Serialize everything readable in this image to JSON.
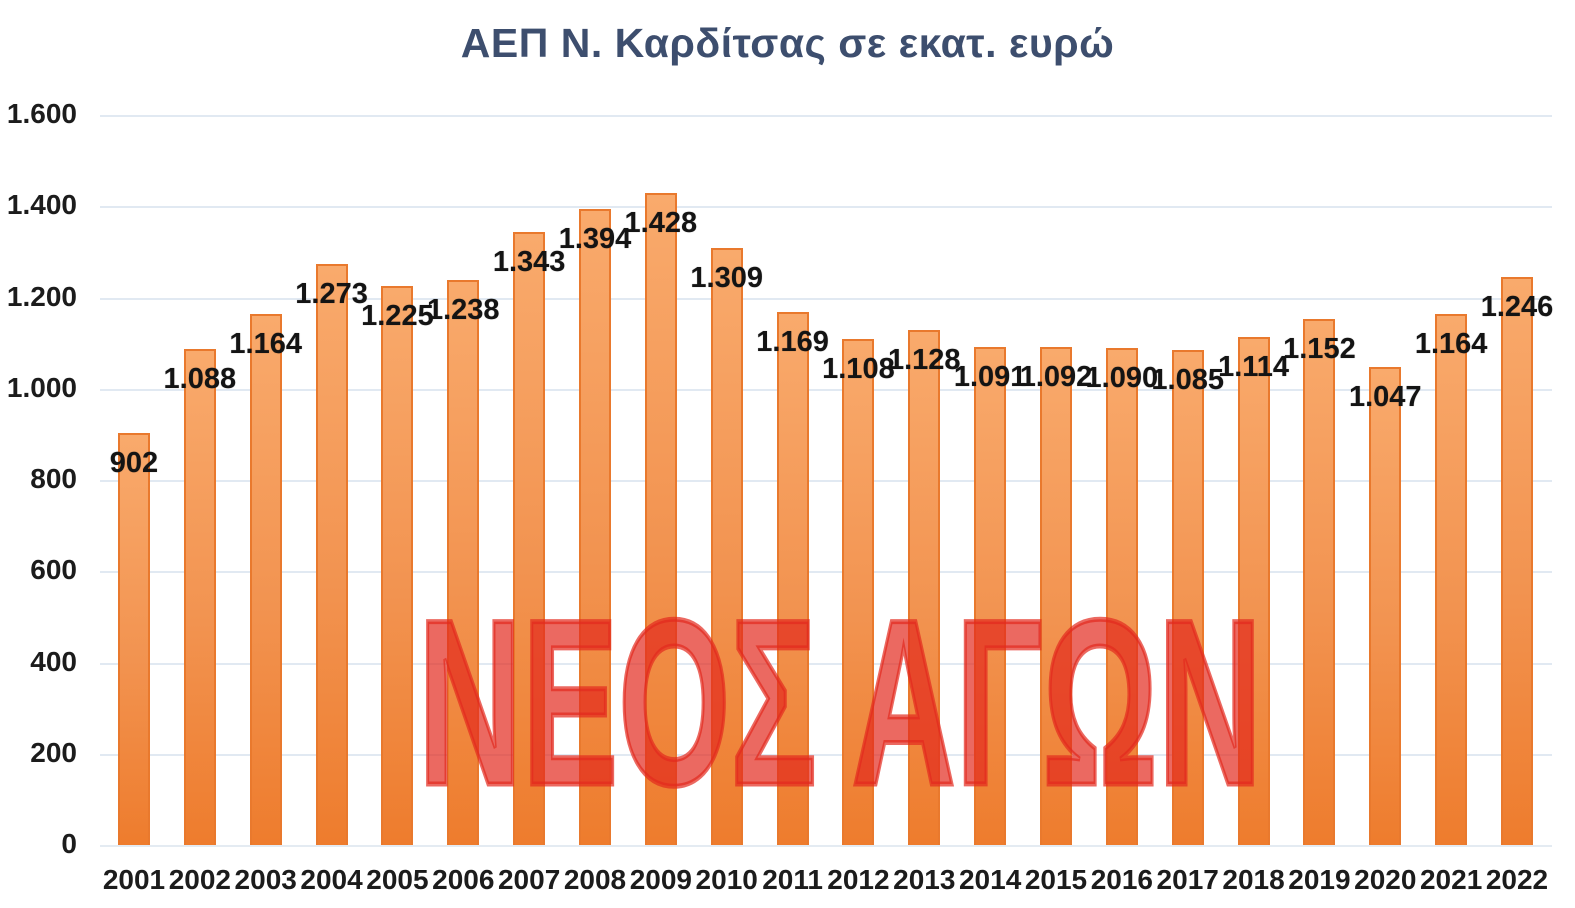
{
  "title": "ΑΕΠ Ν. Καρδίτσας σε εκατ. ευρώ",
  "watermark_text": "ΝΕΟΣ ΑΓΩΝ",
  "colors": {
    "title": "#3D4E6E",
    "bar_fill_top": "#F9AA6C",
    "bar_fill_bottom": "#EE7C2D",
    "bar_border": "#E9792D",
    "gridline": "#E1E9F2",
    "tick_text": "#1C1C1C",
    "value_text": "#141414",
    "watermark": "rgba(226,42,30,0.70)"
  },
  "chart_data": {
    "type": "bar",
    "title": "ΑΕΠ Ν. Καρδίτσας σε εκατ. ευρώ",
    "xlabel": "",
    "ylabel": "",
    "categories": [
      "2001",
      "2002",
      "2003",
      "2004",
      "2005",
      "2006",
      "2007",
      "2008",
      "2009",
      "2010",
      "2011",
      "2012",
      "2013",
      "2014",
      "2015",
      "2016",
      "2017",
      "2018",
      "2019",
      "2020",
      "2021",
      "2022"
    ],
    "values": [
      902,
      1088,
      1164,
      1273,
      1225,
      1238,
      1343,
      1394,
      1428,
      1309,
      1169,
      1108,
      1128,
      1091,
      1092,
      1090,
      1085,
      1114,
      1152,
      1047,
      1164,
      1246
    ],
    "value_labels": [
      "902",
      "1.088",
      "1.164",
      "1.273",
      "1.225",
      "1.238",
      "1.343",
      "1.394",
      "1.428",
      "1.309",
      "1.169",
      "1.108",
      "1.128",
      "1.091",
      "1.092",
      "1.090",
      "1.085",
      "1.114",
      "1.152",
      "1.047",
      "1.164",
      "1.246"
    ],
    "ylim": [
      0,
      1600
    ],
    "ytick_step": 200,
    "ytick_labels": [
      "0",
      "200",
      "400",
      "600",
      "800",
      "1.000",
      "1.200",
      "1.400",
      "1.600"
    ],
    "grid": true,
    "legend": false,
    "bar_color": "orange gradient",
    "annotation": "ΝΕΟΣ ΑΓΩΝ (red watermark overlay)"
  }
}
